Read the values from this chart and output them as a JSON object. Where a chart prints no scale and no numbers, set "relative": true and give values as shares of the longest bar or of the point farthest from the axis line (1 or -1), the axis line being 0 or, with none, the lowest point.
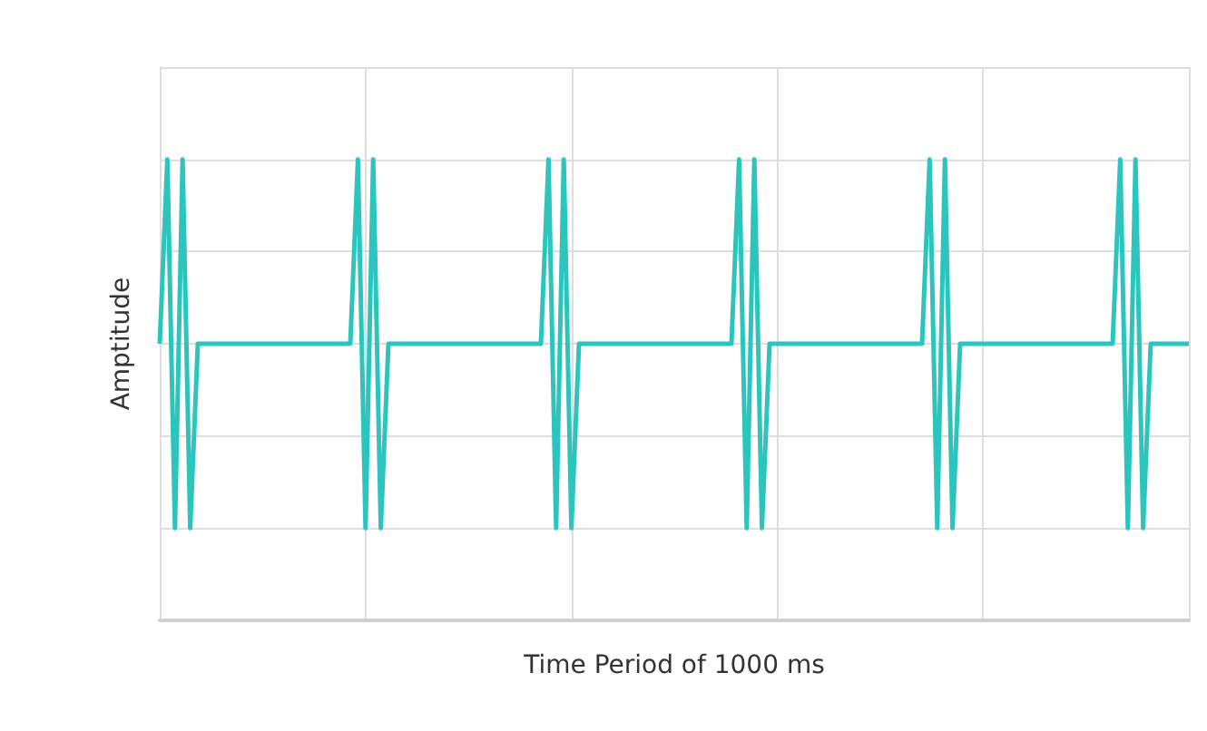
{
  "chart_data": {
    "type": "line",
    "xlabel": "Time Period of 1000 ms",
    "ylabel": "Amptitude",
    "relative": true,
    "grid": true,
    "marker": "none",
    "color": "#2cc5bd",
    "categories": [
      null,
      null,
      null,
      null,
      null,
      null,
      null,
      null,
      null,
      null,
      null,
      null,
      null,
      null,
      null,
      null,
      null,
      null,
      null,
      null,
      null,
      null,
      null,
      null,
      null,
      null,
      null,
      null,
      null,
      null,
      null,
      null,
      null,
      null,
      null,
      null,
      null,
      null,
      null,
      null,
      null,
      null,
      null,
      null,
      null,
      null,
      null,
      null,
      null,
      null,
      null,
      null,
      null,
      null,
      null,
      null,
      null,
      null,
      null,
      null,
      null,
      null,
      null,
      null,
      null,
      null,
      null,
      null,
      null,
      null,
      null,
      null,
      null,
      null,
      null,
      null,
      null,
      null,
      null,
      null,
      null,
      null,
      null,
      null,
      null,
      null,
      null,
      null,
      null,
      null,
      null,
      null,
      null,
      null,
      null,
      null,
      null,
      null,
      null,
      null,
      null,
      null,
      null,
      null,
      null,
      null,
      null,
      null,
      null,
      null,
      null,
      null,
      null,
      null,
      null,
      null,
      null,
      null,
      null,
      null,
      null,
      null,
      null,
      null,
      null,
      null,
      null,
      null,
      null,
      null,
      null,
      null,
      null,
      null,
      null,
      null
    ],
    "values": [
      0.5,
      1,
      0,
      1,
      0,
      0.5,
      0.5,
      0.5,
      0.5,
      0.5,
      0.5,
      0.5,
      0.5,
      0.5,
      0.5,
      0.5,
      0.5,
      0.5,
      0.5,
      0.5,
      0.5,
      0.5,
      0.5,
      0.5,
      0.5,
      0.5,
      1,
      0,
      1,
      0,
      0.5,
      0.5,
      0.5,
      0.5,
      0.5,
      0.5,
      0.5,
      0.5,
      0.5,
      0.5,
      0.5,
      0.5,
      0.5,
      0.5,
      0.5,
      0.5,
      0.5,
      0.5,
      0.5,
      0.5,
      0.5,
      1,
      0,
      1,
      0,
      0.5,
      0.5,
      0.5,
      0.5,
      0.5,
      0.5,
      0.5,
      0.5,
      0.5,
      0.5,
      0.5,
      0.5,
      0.5,
      0.5,
      0.5,
      0.5,
      0.5,
      0.5,
      0.5,
      0.5,
      0.5,
      1,
      0,
      1,
      0,
      0.5,
      0.5,
      0.5,
      0.5,
      0.5,
      0.5,
      0.5,
      0.5,
      0.5,
      0.5,
      0.5,
      0.5,
      0.5,
      0.5,
      0.5,
      0.5,
      0.5,
      0.5,
      0.5,
      0.5,
      0.5,
      1,
      0,
      1,
      0,
      0.5,
      0.5,
      0.5,
      0.5,
      0.5,
      0.5,
      0.5,
      0.5,
      0.5,
      0.5,
      0.5,
      0.5,
      0.5,
      0.5,
      0.5,
      0.5,
      0.5,
      0.5,
      0.5,
      0.5,
      0.5,
      1,
      0,
      1,
      0,
      0.5,
      0.5,
      0.5,
      0.5,
      0.5,
      0.5
    ]
  }
}
